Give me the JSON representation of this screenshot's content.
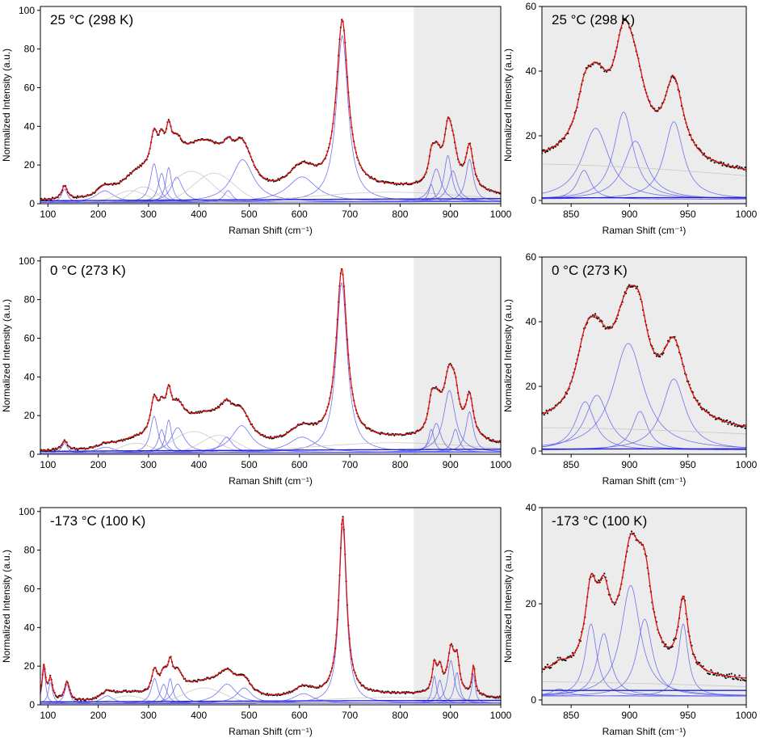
{
  "chart_data": [
    {
      "id": "main-298K",
      "type": "line",
      "title": "25 °C (298 K)",
      "xlabel": "Raman Shift (cm⁻¹)",
      "ylabel": "Normalized Intensity (a.u.)",
      "xlim": [
        85,
        1000
      ],
      "ylim": [
        0,
        102
      ],
      "xticks": [
        100,
        200,
        300,
        400,
        500,
        600,
        700,
        800,
        900,
        1000
      ],
      "yticks": [
        0,
        20,
        40,
        60,
        80,
        100
      ],
      "shaded_region": [
        827,
        1000
      ],
      "baseline": [
        [
          85,
          1.5
        ],
        [
          300,
          1.8
        ],
        [
          500,
          2.0
        ],
        [
          700,
          2.3
        ],
        [
          1000,
          2.6
        ]
      ],
      "peaks": [
        {
          "c": 133,
          "w": 7,
          "a": 7
        },
        {
          "c": 213,
          "w": 22,
          "a": 6
        },
        {
          "c": 265,
          "w": 30,
          "a": 6,
          "g": true
        },
        {
          "c": 290,
          "w": 25,
          "a": 8,
          "g": true
        },
        {
          "c": 311,
          "w": 9,
          "a": 20
        },
        {
          "c": 326,
          "w": 8,
          "a": 15
        },
        {
          "c": 340,
          "w": 7,
          "a": 18
        },
        {
          "c": 356,
          "w": 14,
          "a": 13
        },
        {
          "c": 385,
          "w": 40,
          "a": 16,
          "g": true
        },
        {
          "c": 430,
          "w": 40,
          "a": 15,
          "g": true
        },
        {
          "c": 458,
          "w": 10,
          "a": 6
        },
        {
          "c": 487,
          "w": 26,
          "a": 22
        },
        {
          "c": 605,
          "w": 35,
          "a": 13
        },
        {
          "c": 685,
          "w": 14,
          "a": 86
        },
        {
          "c": 780,
          "w": 150,
          "a": 5,
          "g": true
        },
        {
          "c": 862,
          "w": 6,
          "a": 9
        },
        {
          "c": 872,
          "w": 12,
          "a": 17
        },
        {
          "c": 895,
          "w": 9,
          "a": 24
        },
        {
          "c": 905,
          "w": 11,
          "a": 16
        },
        {
          "c": 938,
          "w": 9,
          "a": 22
        }
      ]
    },
    {
      "id": "zoom-298K",
      "type": "line",
      "title": "25 °C (298 K)",
      "xlabel": "Raman Shift (cm⁻¹)",
      "ylabel": "Normalized Intensity (a.u.)",
      "xlim": [
        825,
        1000
      ],
      "ylim": [
        -1,
        60
      ],
      "xticks": [
        850,
        900,
        950,
        1000
      ],
      "yticks": [
        0,
        20,
        40,
        60
      ],
      "shaded_region": [
        825,
        1000
      ],
      "baseline": [
        [
          825,
          0.8
        ],
        [
          1000,
          0.9
        ]
      ],
      "peaks": [
        {
          "c": 861,
          "w": 7,
          "a": 9
        },
        {
          "c": 871,
          "w": 14,
          "a": 22
        },
        {
          "c": 895,
          "w": 10,
          "a": 27
        },
        {
          "c": 905,
          "w": 12,
          "a": 18
        },
        {
          "c": 938,
          "w": 10,
          "a": 24
        },
        {
          "c": 800,
          "w": 220,
          "a": 11,
          "g": true
        }
      ]
    },
    {
      "id": "main-273K",
      "type": "line",
      "title": "0 °C (273 K)",
      "xlabel": "Raman Shift (cm⁻¹)",
      "ylabel": "Normalized Intensity (a.u.)",
      "xlim": [
        85,
        1000
      ],
      "ylim": [
        0,
        102
      ],
      "xticks": [
        100,
        200,
        300,
        400,
        500,
        600,
        700,
        800,
        900,
        1000
      ],
      "yticks": [
        0,
        20,
        40,
        60,
        80,
        100
      ],
      "shaded_region": [
        827,
        1000
      ],
      "baseline": [
        [
          85,
          1.5
        ],
        [
          300,
          1.8
        ],
        [
          500,
          2.0
        ],
        [
          700,
          2.3
        ],
        [
          1000,
          2.6
        ]
      ],
      "peaks": [
        {
          "c": 133,
          "w": 7,
          "a": 5
        },
        {
          "c": 215,
          "w": 22,
          "a": 3
        },
        {
          "c": 275,
          "w": 30,
          "a": 5,
          "g": true
        },
        {
          "c": 311,
          "w": 9,
          "a": 19
        },
        {
          "c": 326,
          "w": 8,
          "a": 12
        },
        {
          "c": 340,
          "w": 7,
          "a": 17
        },
        {
          "c": 358,
          "w": 16,
          "a": 13
        },
        {
          "c": 390,
          "w": 40,
          "a": 11,
          "g": true
        },
        {
          "c": 440,
          "w": 35,
          "a": 9,
          "g": true
        },
        {
          "c": 455,
          "w": 14,
          "a": 8
        },
        {
          "c": 485,
          "w": 24,
          "a": 14
        },
        {
          "c": 605,
          "w": 32,
          "a": 8
        },
        {
          "c": 684,
          "w": 13,
          "a": 88
        },
        {
          "c": 790,
          "w": 160,
          "a": 5,
          "g": true
        },
        {
          "c": 862,
          "w": 7,
          "a": 12
        },
        {
          "c": 872,
          "w": 11,
          "a": 15
        },
        {
          "c": 898,
          "w": 14,
          "a": 32
        },
        {
          "c": 910,
          "w": 8,
          "a": 12
        },
        {
          "c": 938,
          "w": 9,
          "a": 21
        }
      ]
    },
    {
      "id": "zoom-273K",
      "type": "line",
      "title": "0 °C (273 K)",
      "xlabel": "Raman Shift (cm⁻¹)",
      "ylabel": "Normalized Intensity (a.u.)",
      "xlim": [
        825,
        1000
      ],
      "ylim": [
        -1,
        60
      ],
      "xticks": [
        850,
        900,
        950,
        1000
      ],
      "yticks": [
        0,
        20,
        40,
        60
      ],
      "shaded_region": [
        825,
        1000
      ],
      "baseline": [
        [
          825,
          0.6
        ],
        [
          1000,
          0.7
        ]
      ],
      "peaks": [
        {
          "c": 862,
          "w": 10,
          "a": 15
        },
        {
          "c": 872,
          "w": 12,
          "a": 17
        },
        {
          "c": 899,
          "w": 16,
          "a": 33
        },
        {
          "c": 909,
          "w": 8,
          "a": 12
        },
        {
          "c": 938,
          "w": 12,
          "a": 22
        },
        {
          "c": 810,
          "w": 230,
          "a": 7,
          "g": true
        }
      ]
    },
    {
      "id": "main-100K",
      "type": "line",
      "title": "-173 °C (100 K)",
      "xlabel": "Raman Shift (cm⁻¹)",
      "ylabel": "Normalized Intensity (a.u.)",
      "xlim": [
        85,
        1000
      ],
      "ylim": [
        0,
        102
      ],
      "xticks": [
        100,
        200,
        300,
        400,
        500,
        600,
        700,
        800,
        900,
        1000
      ],
      "yticks": [
        0,
        20,
        40,
        60,
        80,
        100
      ],
      "shaded_region": [
        827,
        1000
      ],
      "baseline": [
        [
          85,
          1.5
        ],
        [
          300,
          1.7
        ],
        [
          500,
          1.9
        ],
        [
          700,
          2.1
        ],
        [
          1000,
          2.3
        ]
      ],
      "peaks": [
        {
          "c": 92,
          "w": 4,
          "a": 18
        },
        {
          "c": 105,
          "w": 5,
          "a": 11
        },
        {
          "c": 138,
          "w": 6,
          "a": 10
        },
        {
          "c": 218,
          "w": 15,
          "a": 4
        },
        {
          "c": 260,
          "w": 30,
          "a": 4,
          "g": true
        },
        {
          "c": 312,
          "w": 8,
          "a": 13
        },
        {
          "c": 330,
          "w": 8,
          "a": 10
        },
        {
          "c": 343,
          "w": 6,
          "a": 13
        },
        {
          "c": 358,
          "w": 12,
          "a": 10
        },
        {
          "c": 410,
          "w": 40,
          "a": 8,
          "g": true
        },
        {
          "c": 456,
          "w": 22,
          "a": 10
        },
        {
          "c": 490,
          "w": 18,
          "a": 8
        },
        {
          "c": 608,
          "w": 24,
          "a": 5
        },
        {
          "c": 686,
          "w": 9,
          "a": 92
        },
        {
          "c": 790,
          "w": 150,
          "a": 3,
          "g": true
        },
        {
          "c": 868,
          "w": 5,
          "a": 14
        },
        {
          "c": 879,
          "w": 6,
          "a": 12
        },
        {
          "c": 901,
          "w": 8,
          "a": 22
        },
        {
          "c": 913,
          "w": 6,
          "a": 16
        },
        {
          "c": 946,
          "w": 4,
          "a": 15
        }
      ]
    },
    {
      "id": "zoom-100K",
      "type": "line",
      "title": "-173 °C (100 K)",
      "xlabel": "Raman Shift (cm⁻¹)",
      "ylabel": "Normalized Intensity (a.u.)",
      "xlim": [
        825,
        1000
      ],
      "ylim": [
        -1,
        40
      ],
      "xticks": [
        850,
        900,
        950,
        1000
      ],
      "yticks": [
        0,
        20,
        40
      ],
      "shaded_region": [
        825,
        1000
      ],
      "baseline": [
        [
          825,
          2.0
        ],
        [
          1000,
          2.0
        ]
      ],
      "peaks": [
        {
          "c": 840,
          "w": 8,
          "a": 1.5
        },
        {
          "c": 867,
          "w": 6,
          "a": 15
        },
        {
          "c": 878,
          "w": 7,
          "a": 13
        },
        {
          "c": 901,
          "w": 10,
          "a": 23
        },
        {
          "c": 913,
          "w": 8,
          "a": 16
        },
        {
          "c": 946,
          "w": 5,
          "a": 15
        },
        {
          "c": 800,
          "w": 220,
          "a": 3,
          "g": true
        }
      ]
    }
  ]
}
